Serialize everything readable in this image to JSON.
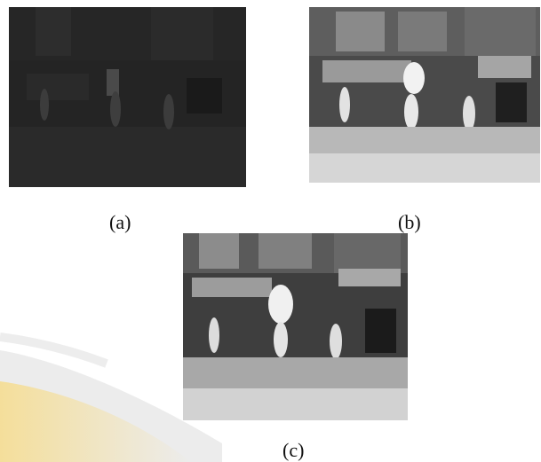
{
  "figure": {
    "panels": [
      {
        "label": "(a)"
      },
      {
        "label": "(b)"
      },
      {
        "label": "(c)"
      }
    ]
  },
  "colors": {
    "background": "#ffffff",
    "watermark_gray": "#d9d9d9",
    "watermark_gold": "#f4d27a"
  }
}
